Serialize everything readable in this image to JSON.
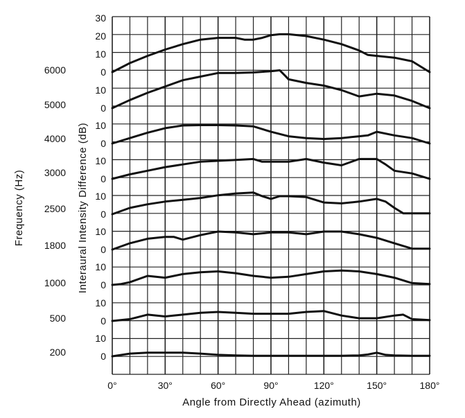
{
  "chart_data": {
    "type": "line",
    "xlabel": "Angle from Directly Ahead (azimuth)",
    "ylabel": "Interaural Intensity Difference (dB)",
    "frequency_axis_label": "Frequency (Hz)",
    "x_ticks": [
      0,
      30,
      60,
      90,
      120,
      150,
      180
    ],
    "x_tick_labels": [
      "0°",
      "30°",
      "60°",
      "90°",
      "120°",
      "150°",
      "180°"
    ],
    "xlim": [
      0,
      180
    ],
    "grid": true,
    "top_ticks": [
      "30",
      "20",
      "10",
      "0"
    ],
    "panel_ticks": [
      "10",
      "0"
    ],
    "series": [
      {
        "name": "6000",
        "x": [
          0,
          10,
          20,
          30,
          40,
          50,
          60,
          70,
          75,
          80,
          85,
          90,
          95,
          100,
          110,
          120,
          130,
          140,
          145,
          150,
          160,
          170,
          180
        ],
        "y": [
          0,
          5,
          9,
          12.5,
          15.5,
          18,
          19,
          19,
          18,
          18,
          19,
          20.5,
          21,
          21,
          20,
          18,
          15.5,
          12,
          9.5,
          9,
          8,
          6,
          0
        ]
      },
      {
        "name": "5000",
        "x": [
          0,
          10,
          20,
          30,
          40,
          50,
          60,
          70,
          80,
          90,
          95,
          98,
          100,
          110,
          120,
          130,
          140,
          150,
          160,
          170,
          180
        ],
        "y": [
          0,
          4.5,
          8.5,
          12,
          15.5,
          17.5,
          19.5,
          19.5,
          19.8,
          20.5,
          21,
          18,
          16,
          14,
          12.5,
          10,
          6.5,
          8,
          7,
          4,
          0
        ]
      },
      {
        "name": "4000",
        "x": [
          0,
          10,
          20,
          30,
          40,
          50,
          60,
          70,
          80,
          90,
          100,
          110,
          120,
          130,
          140,
          145,
          150,
          160,
          170,
          180
        ],
        "y": [
          0,
          3,
          6,
          8.5,
          10,
          10.2,
          10.2,
          10,
          9.5,
          6.5,
          4,
          3,
          2.5,
          3,
          4,
          4.5,
          6.5,
          4.5,
          3,
          0
        ]
      },
      {
        "name": "3000",
        "x": [
          0,
          10,
          20,
          30,
          40,
          50,
          60,
          70,
          80,
          85,
          90,
          100,
          110,
          120,
          130,
          140,
          150,
          155,
          160,
          170,
          180
        ],
        "y": [
          0,
          2.5,
          4.5,
          6.5,
          8,
          9.5,
          10,
          10.5,
          11,
          9.5,
          9.5,
          9.5,
          11,
          9,
          7.5,
          11,
          11,
          8,
          4.5,
          3,
          0
        ]
      },
      {
        "name": "2500",
        "x": [
          0,
          10,
          20,
          30,
          40,
          50,
          60,
          70,
          80,
          85,
          90,
          95,
          100,
          110,
          120,
          130,
          140,
          150,
          155,
          160,
          165,
          170,
          180
        ],
        "y": [
          0,
          3.5,
          5.5,
          7,
          8,
          9,
          10.5,
          11.5,
          12,
          10,
          8.5,
          10,
          10,
          9.5,
          6.5,
          6,
          7,
          8.5,
          7,
          3.5,
          0.5,
          0.5,
          0.5
        ]
      },
      {
        "name": "1800",
        "x": [
          0,
          10,
          20,
          30,
          35,
          40,
          50,
          60,
          70,
          80,
          90,
          100,
          110,
          120,
          130,
          140,
          150,
          160,
          170,
          180
        ],
        "y": [
          0,
          3.5,
          6,
          7,
          7,
          5.5,
          8,
          10,
          9.5,
          8.5,
          9.5,
          9.5,
          8.5,
          10,
          10,
          8.5,
          6.5,
          3.5,
          0.5,
          0.5
        ]
      },
      {
        "name": "1000",
        "x": [
          0,
          5,
          10,
          20,
          30,
          40,
          50,
          60,
          70,
          80,
          90,
          100,
          110,
          120,
          130,
          140,
          150,
          160,
          170,
          180
        ],
        "y": [
          0,
          0.5,
          1.5,
          5,
          4,
          6,
          7,
          7.5,
          6.5,
          5,
          4,
          4.5,
          6,
          7.5,
          8,
          7.5,
          6,
          4,
          1,
          0.5
        ]
      },
      {
        "name": "500",
        "x": [
          0,
          10,
          20,
          30,
          40,
          50,
          60,
          70,
          80,
          90,
          100,
          110,
          120,
          130,
          140,
          150,
          160,
          165,
          170,
          180
        ],
        "y": [
          0,
          1,
          3.5,
          2.5,
          3.5,
          4.5,
          5,
          4.5,
          4,
          4,
          4,
          5,
          5.5,
          3,
          1.5,
          1.5,
          3,
          3.5,
          1,
          0.5
        ]
      },
      {
        "name": "200",
        "x": [
          0,
          10,
          20,
          30,
          40,
          50,
          60,
          70,
          80,
          90,
          100,
          110,
          120,
          130,
          140,
          145,
          150,
          155,
          160,
          170,
          180
        ],
        "y": [
          0,
          1.5,
          2,
          2,
          2,
          1.5,
          0.8,
          0.5,
          0.3,
          0.3,
          0.3,
          0.3,
          0.3,
          0.3,
          0.5,
          1,
          2,
          0.8,
          0.5,
          0.3,
          0.3
        ]
      }
    ]
  }
}
